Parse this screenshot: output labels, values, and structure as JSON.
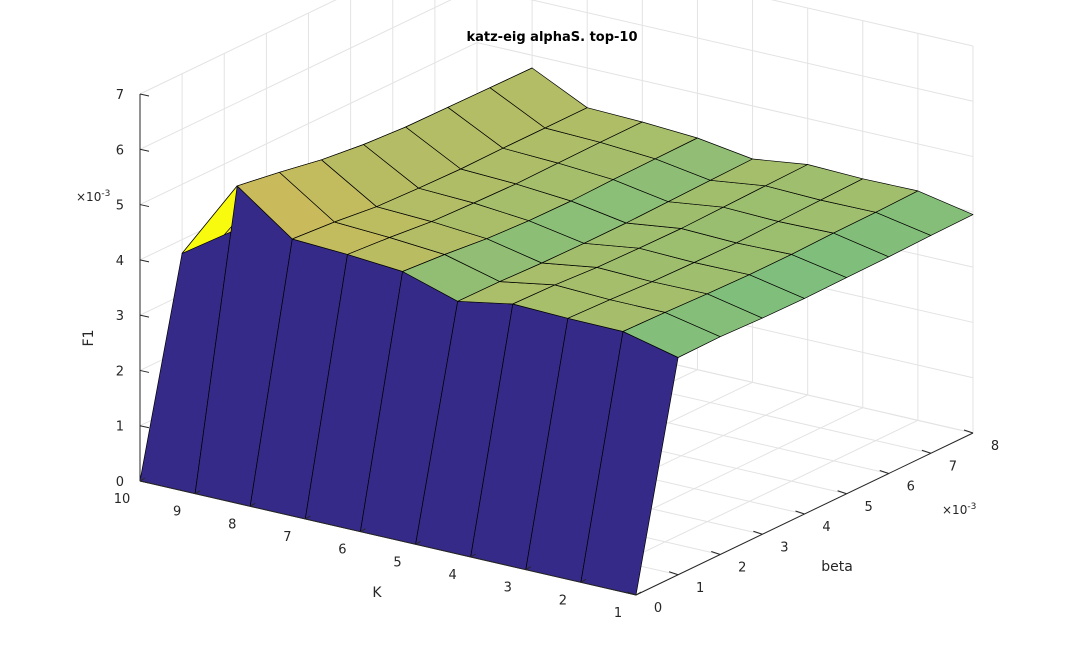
{
  "chart_data": {
    "type": "surface",
    "title": "katz-eig alphaS. top-10",
    "xlabel": "beta",
    "ylabel": "K",
    "zlabel": "F1",
    "x_exponent": "×10",
    "x_exponent_power": "-3",
    "z_exponent": "×10",
    "z_exponent_power": "-3",
    "x_ticks": [
      "0",
      "1",
      "2",
      "3",
      "4",
      "5",
      "6",
      "7",
      "8"
    ],
    "y_ticks": [
      "1",
      "2",
      "3",
      "4",
      "5",
      "6",
      "7",
      "8",
      "9",
      "10"
    ],
    "z_ticks": [
      "0",
      "1",
      "2",
      "3",
      "4",
      "5",
      "6",
      "7"
    ],
    "xlim": [
      0,
      0.008
    ],
    "ylim": [
      1,
      10
    ],
    "zlim": [
      0,
      0.007
    ],
    "grid": true,
    "colormap": "parula",
    "beta": [
      0,
      0.001,
      0.002,
      0.003,
      0.004,
      0.005,
      0.006,
      0.007,
      0.008
    ],
    "K": [
      1,
      2,
      3,
      4,
      5,
      6,
      7,
      8,
      9,
      10
    ],
    "F1": [
      [
        0,
        0.00393,
        0.00394,
        0.00391,
        0.0039,
        0.00391,
        0.00392,
        0.00394,
        0.00395
      ],
      [
        0,
        0.00417,
        0.00415,
        0.00412,
        0.0041,
        0.0041,
        0.00412,
        0.00413,
        0.00415
      ],
      [
        0,
        0.00418,
        0.00415,
        0.00411,
        0.00409,
        0.00408,
        0.0041,
        0.00412,
        0.00414
      ],
      [
        0,
        0.00421,
        0.00419,
        0.00414,
        0.00412,
        0.00411,
        0.00413,
        0.00415,
        0.00417
      ],
      [
        0,
        0.00403,
        0.00402,
        0.00399,
        0.00398,
        0.00398,
        0.004,
        0.00402,
        0.00404
      ],
      [
        0,
        0.00434,
        0.00428,
        0.0042,
        0.00416,
        0.00415,
        0.00417,
        0.00418,
        0.00419
      ],
      [
        0,
        0.00442,
        0.00436,
        0.00428,
        0.00425,
        0.00423,
        0.00424,
        0.00425,
        0.00425
      ],
      [
        0,
        0.00447,
        0.00441,
        0.00432,
        0.00429,
        0.00427,
        0.00428,
        0.00428,
        0.00428
      ],
      [
        0,
        0.0052,
        0.00508,
        0.00494,
        0.00485,
        0.0048,
        0.00479,
        0.00478,
        0.00477
      ],
      [
        0,
        0.00375,
        0.00372,
        0.00368,
        0.00366,
        0.00365,
        0.00366,
        0.00367,
        0.00368
      ]
    ]
  }
}
